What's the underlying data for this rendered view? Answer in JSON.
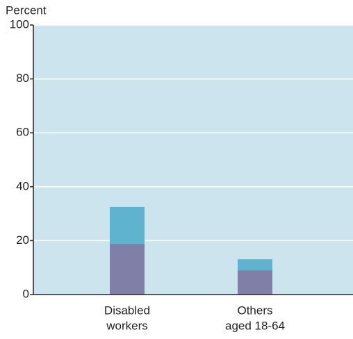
{
  "chart_data": {
    "type": "stacked-bar",
    "y_label": "Percent",
    "categories": [
      [
        "Disabled",
        "workers"
      ],
      [
        "Others",
        "aged 18-64"
      ]
    ],
    "series": [
      {
        "color": "#7f7fa8",
        "values": [
          18.8,
          9.0
        ]
      },
      {
        "color": "#5fb3cf",
        "values": [
          13.7,
          4.1
        ]
      }
    ],
    "ylim": [
      0,
      100
    ],
    "yticks": [
      0,
      20,
      40,
      60,
      80,
      100
    ],
    "grid": true,
    "background": "#cce4ee"
  }
}
